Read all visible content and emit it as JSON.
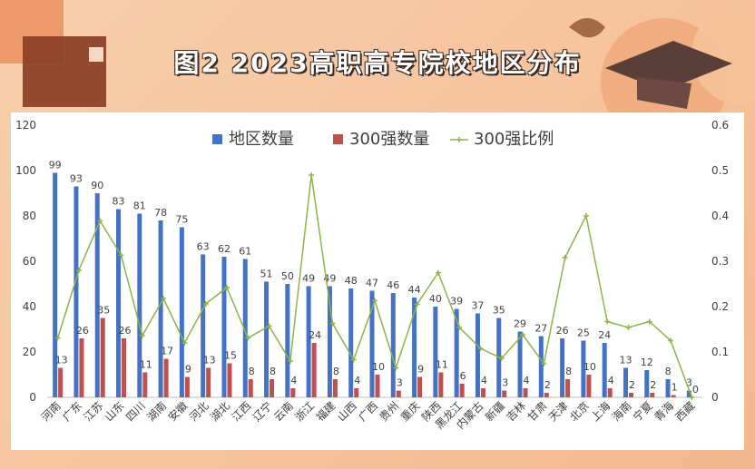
{
  "title": "图2  2023高职高专院校地区分布",
  "colors": {
    "region": "#4472c4",
    "top300": "#c0504d",
    "ratio": "#8db543"
  },
  "chart_data": {
    "type": "bar",
    "categories": [
      "河南",
      "广东",
      "江苏",
      "山东",
      "四川",
      "湖南",
      "安徽",
      "河北",
      "湖北",
      "江西",
      "辽宁",
      "云南",
      "浙江",
      "福建",
      "山西",
      "广西",
      "贵州",
      "重庆",
      "陕西",
      "黑龙江",
      "内蒙古",
      "新疆",
      "吉林",
      "甘肃",
      "天津",
      "北京",
      "上海",
      "海南",
      "宁夏",
      "青海",
      "西藏"
    ],
    "series": [
      {
        "name": "地区数量",
        "type": "bar",
        "axis": "left",
        "values": [
          99,
          93,
          90,
          83,
          81,
          78,
          75,
          63,
          62,
          61,
          51,
          50,
          49,
          49,
          48,
          47,
          46,
          44,
          40,
          39,
          37,
          35,
          29,
          27,
          26,
          25,
          24,
          13,
          12,
          8,
          3
        ]
      },
      {
        "name": "300强数量",
        "type": "bar",
        "axis": "left",
        "values": [
          13,
          26,
          35,
          26,
          11,
          17,
          9,
          13,
          15,
          8,
          8,
          4,
          24,
          8,
          4,
          10,
          3,
          9,
          11,
          6,
          4,
          3,
          4,
          2,
          8,
          10,
          4,
          2,
          2,
          1,
          0
        ]
      },
      {
        "name": "300强比例",
        "type": "line",
        "axis": "right",
        "values": [
          0.131,
          0.28,
          0.389,
          0.313,
          0.136,
          0.218,
          0.12,
          0.206,
          0.242,
          0.131,
          0.157,
          0.08,
          0.49,
          0.163,
          0.083,
          0.213,
          0.065,
          0.205,
          0.275,
          0.154,
          0.108,
          0.086,
          0.138,
          0.074,
          0.308,
          0.4,
          0.167,
          0.154,
          0.167,
          0.125,
          0
        ]
      }
    ],
    "ylim": [
      0,
      120
    ],
    "y_ticks": [
      "0",
      "20",
      "40",
      "60",
      "80",
      "100",
      "120"
    ],
    "y2lim": [
      0,
      0.6
    ],
    "y2_ticks": [
      "0",
      "0.1",
      "0.2",
      "0.3",
      "0.4",
      "0.5",
      "0.6"
    ],
    "legend_position": "top"
  }
}
